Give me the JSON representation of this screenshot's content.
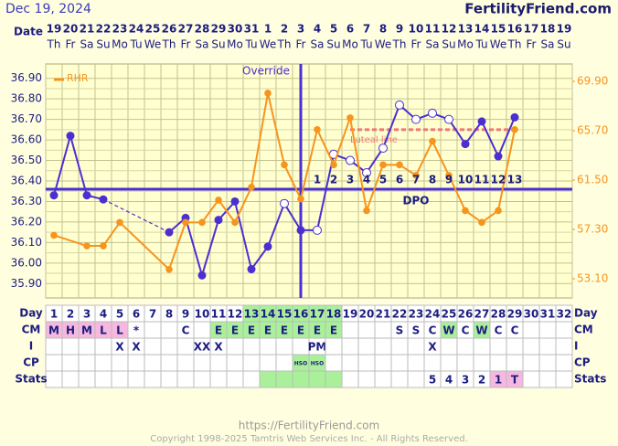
{
  "header": {
    "date": "Dec 19, 2024",
    "site": "FertilityFriend.com"
  },
  "chart_data": {
    "type": "line",
    "row_labels": {
      "date": "Date",
      "day": "Day",
      "cm": "CM",
      "i": "I",
      "cp": "CP",
      "stats": "Stats"
    },
    "dates": [
      "19",
      "20",
      "21",
      "22",
      "23",
      "24",
      "25",
      "26",
      "27",
      "28",
      "29",
      "30",
      "31",
      "1",
      "2",
      "3",
      "4",
      "5",
      "6",
      "7",
      "8",
      "9",
      "10",
      "11",
      "12",
      "13",
      "14",
      "15",
      "16",
      "17",
      "18",
      "19"
    ],
    "weekdays": [
      "Th",
      "Fr",
      "Sa",
      "Su",
      "Mo",
      "Tu",
      "We",
      "Th",
      "Fr",
      "Sa",
      "Su",
      "Mo",
      "Tu",
      "We",
      "Th",
      "Fr",
      "Sa",
      "Su",
      "Mo",
      "Tu",
      "We",
      "Th",
      "Fr",
      "Sa",
      "Su",
      "Mo",
      "Tu",
      "We",
      "Th",
      "Fr",
      "Sa",
      "Su"
    ],
    "categories": [
      1,
      2,
      3,
      4,
      5,
      6,
      7,
      8,
      9,
      10,
      11,
      12,
      13,
      14,
      15,
      16,
      17,
      18,
      19,
      20,
      21,
      22,
      23,
      24,
      25,
      26,
      27,
      28,
      29,
      30,
      31,
      32
    ],
    "series": [
      {
        "color": "#4b2fd1",
        "gap_style": "dashed",
        "values": [
          36.33,
          36.62,
          36.33,
          36.31,
          null,
          null,
          null,
          36.15,
          36.22,
          35.94,
          36.21,
          36.3,
          35.97,
          36.08,
          36.29,
          36.16,
          36.16,
          36.53,
          36.5,
          36.44,
          36.56,
          36.77,
          36.7,
          36.73,
          36.7,
          36.58,
          36.69,
          36.52,
          36.71,
          null,
          null,
          null
        ],
        "hollow": [
          false,
          false,
          false,
          false,
          false,
          false,
          false,
          false,
          false,
          false,
          false,
          false,
          false,
          false,
          true,
          false,
          true,
          true,
          true,
          true,
          true,
          true,
          true,
          true,
          true,
          false,
          false,
          false,
          false,
          false,
          false,
          false
        ]
      },
      {
        "name": "RHR",
        "color": "#f7941d",
        "axis": "y2",
        "gap_style": "solid",
        "values": [
          56.8,
          null,
          55.9,
          55.9,
          57.9,
          null,
          null,
          53.9,
          57.9,
          57.9,
          59.8,
          57.9,
          60.9,
          68.9,
          62.8,
          59.9,
          65.8,
          62.8,
          66.8,
          58.9,
          62.8,
          62.8,
          61.9,
          64.8,
          61.9,
          58.9,
          57.9,
          58.9,
          65.8,
          null,
          null,
          null
        ]
      }
    ],
    "ylim": [
      35.83,
      36.97
    ],
    "yticks": [
      {
        "value": 35.9,
        "label": "35.90"
      },
      {
        "value": 36.0,
        "label": "36.00"
      },
      {
        "value": 36.1,
        "label": "36.10"
      },
      {
        "value": 36.2,
        "label": "36.20"
      },
      {
        "value": 36.3,
        "label": "36.30"
      },
      {
        "value": 36.4,
        "label": "36.40"
      },
      {
        "value": 36.5,
        "label": "36.50"
      },
      {
        "value": 36.6,
        "label": "36.60"
      },
      {
        "value": 36.7,
        "label": "36.70"
      },
      {
        "value": 36.8,
        "label": "36.80"
      },
      {
        "value": 36.9,
        "label": "36.90"
      }
    ],
    "y2lim": [
      51.47,
      71.38
    ],
    "y2ticks": [
      {
        "value": 53.1,
        "label": "53.10"
      },
      {
        "value": 57.3,
        "label": "57.30"
      },
      {
        "value": 61.5,
        "label": "61.50"
      },
      {
        "value": 65.7,
        "label": "65.70"
      },
      {
        "value": 69.9,
        "label": "69.90"
      }
    ],
    "grid": true,
    "coverline": {
      "value": 36.36,
      "color": "#4b2fd1"
    },
    "override": {
      "label": "Override",
      "category": 16,
      "color": "#4b2fd1"
    },
    "luteal_line": {
      "label": "Luteal line",
      "value": 36.65,
      "from": 19,
      "to": 29,
      "color": "#f07878"
    },
    "dpo": {
      "label": "DPO",
      "values": [
        null,
        null,
        null,
        null,
        null,
        null,
        null,
        null,
        null,
        null,
        null,
        null,
        null,
        null,
        null,
        null,
        1,
        2,
        3,
        4,
        5,
        6,
        7,
        8,
        9,
        10,
        11,
        12,
        13,
        null,
        null,
        null
      ]
    },
    "shade_colors": {
      "pink": "#f6b8de",
      "green": "#aaf09a"
    },
    "rows": [
      {
        "key": "day",
        "values": [
          1,
          2,
          3,
          4,
          5,
          6,
          7,
          8,
          9,
          10,
          11,
          12,
          13,
          14,
          15,
          16,
          17,
          18,
          19,
          20,
          21,
          22,
          23,
          24,
          25,
          26,
          27,
          28,
          29,
          30,
          31,
          32
        ],
        "shade": [
          null,
          null,
          null,
          null,
          null,
          null,
          null,
          null,
          null,
          null,
          null,
          null,
          "green",
          "green",
          "green",
          "green",
          "green",
          "green",
          null,
          null,
          null,
          null,
          null,
          null,
          null,
          null,
          null,
          null,
          null,
          null,
          null,
          null
        ]
      },
      {
        "key": "cm",
        "values": [
          "M",
          "H",
          "M",
          "L",
          "L",
          "*",
          null,
          null,
          "C",
          null,
          "E",
          "E",
          "E",
          "E",
          "E",
          "E",
          "E",
          "E",
          null,
          null,
          null,
          "S",
          "S",
          "C",
          "W",
          "C",
          "W",
          "C",
          "C",
          null,
          null,
          null
        ],
        "shade": [
          "pink",
          "pink",
          "pink",
          "pink",
          "pink",
          null,
          null,
          null,
          null,
          null,
          "green",
          "green",
          "green",
          "green",
          "green",
          "green",
          "green",
          "green",
          null,
          null,
          null,
          null,
          null,
          null,
          "green",
          null,
          "green",
          null,
          null,
          null,
          null,
          null
        ]
      },
      {
        "key": "i",
        "values": [
          null,
          null,
          null,
          null,
          "X",
          "X",
          null,
          null,
          null,
          "XX",
          "X",
          null,
          null,
          null,
          null,
          null,
          "PM",
          null,
          null,
          null,
          null,
          null,
          null,
          "X",
          null,
          null,
          null,
          null,
          null,
          null,
          null,
          null
        ],
        "shade": [
          null,
          null,
          null,
          null,
          null,
          null,
          null,
          null,
          null,
          null,
          null,
          null,
          null,
          null,
          null,
          null,
          null,
          null,
          null,
          null,
          null,
          null,
          null,
          null,
          null,
          null,
          null,
          null,
          null,
          null,
          null,
          null
        ]
      },
      {
        "key": "cp",
        "values": [
          null,
          null,
          null,
          null,
          null,
          null,
          null,
          null,
          null,
          null,
          null,
          null,
          null,
          null,
          null,
          "HSO",
          "HSO",
          null,
          null,
          null,
          null,
          null,
          null,
          null,
          null,
          null,
          null,
          null,
          null,
          null,
          null,
          null
        ],
        "shade": [
          null,
          null,
          null,
          null,
          null,
          null,
          null,
          null,
          null,
          null,
          null,
          null,
          null,
          null,
          null,
          "green",
          "green",
          null,
          null,
          null,
          null,
          null,
          null,
          null,
          null,
          null,
          null,
          null,
          null,
          null,
          null,
          null
        ]
      },
      {
        "key": "stats",
        "values": [
          null,
          null,
          null,
          null,
          null,
          null,
          null,
          null,
          null,
          null,
          null,
          null,
          null,
          null,
          null,
          null,
          null,
          null,
          null,
          null,
          null,
          null,
          null,
          "5",
          "4",
          "3",
          "2",
          "1",
          "T",
          null,
          null,
          null
        ],
        "shade": [
          null,
          null,
          null,
          null,
          null,
          null,
          null,
          null,
          null,
          null,
          null,
          null,
          null,
          "green",
          "green",
          "green",
          "green",
          "green",
          null,
          null,
          null,
          null,
          null,
          null,
          null,
          null,
          null,
          "pink",
          "pink",
          null,
          null,
          null
        ]
      }
    ]
  },
  "footer": {
    "url": "https://FertilityFriend.com",
    "copyright": "Copyright 1998-2025 Tamtris Web Services Inc. - All Rights Reserved."
  }
}
